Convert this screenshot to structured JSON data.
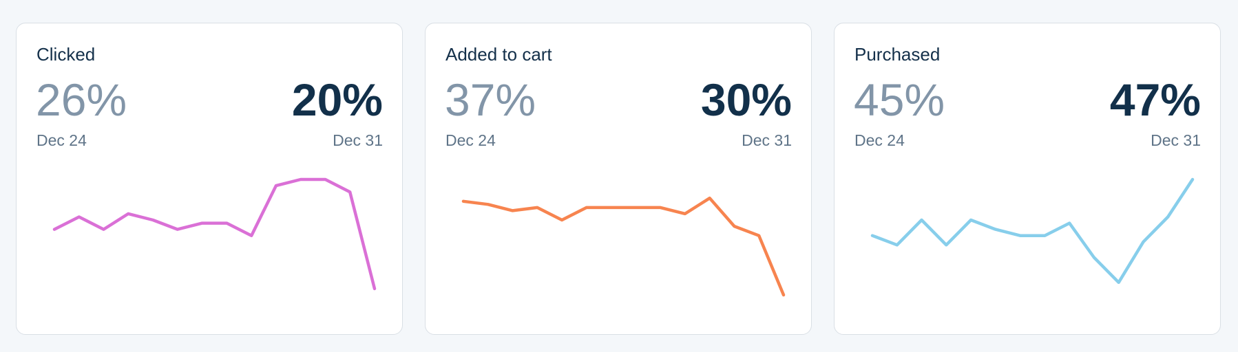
{
  "cards": [
    {
      "title": "Clicked",
      "previous_value": "26%",
      "previous_date": "Dec 24",
      "current_value": "20%",
      "current_date": "Dec 31",
      "color": "#da70d6",
      "chart_data": {
        "type": "line",
        "values": [
          0.66,
          0.62,
          0.66,
          0.61,
          0.63,
          0.66,
          0.64,
          0.64,
          0.68,
          0.52,
          0.5,
          0.5,
          0.54,
          0.85
        ]
      }
    },
    {
      "title": "Added to cart",
      "previous_value": "37%",
      "previous_date": "Dec 24",
      "current_value": "30%",
      "current_date": "Dec 31",
      "color": "#f7844f",
      "chart_data": {
        "type": "line",
        "values": [
          0.57,
          0.58,
          0.6,
          0.59,
          0.63,
          0.59,
          0.59,
          0.59,
          0.59,
          0.61,
          0.56,
          0.65,
          0.68,
          0.87
        ]
      }
    },
    {
      "title": "Purchased",
      "previous_value": "45%",
      "previous_date": "Dec 24",
      "current_value": "47%",
      "current_date": "Dec 31",
      "color": "#87ceeb",
      "chart_data": {
        "type": "line",
        "values": [
          0.68,
          0.71,
          0.63,
          0.71,
          0.63,
          0.66,
          0.68,
          0.68,
          0.64,
          0.75,
          0.83,
          0.7,
          0.62,
          0.5
        ]
      }
    }
  ]
}
